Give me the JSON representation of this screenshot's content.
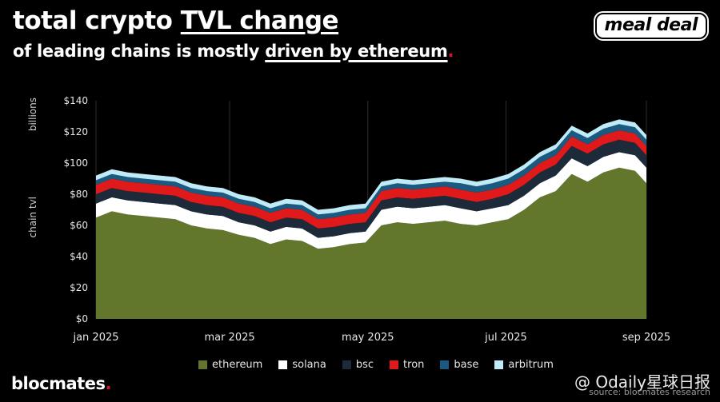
{
  "header": {
    "title_prefix": "total crypto ",
    "title_emph": "TVL change",
    "subtitle_prefix": "of leading chains is mostly ",
    "subtitle_emph": "driven by ethereum",
    "subtitle_dot": "."
  },
  "logo": {
    "text": "meal deal"
  },
  "footer": {
    "brand": "blocmates",
    "brand_dot": ".",
    "watermark": "@ Odaily星球日报",
    "source": "source: blocmates research"
  },
  "colors": {
    "ethereum": "#62772c",
    "solana": "#ffffff",
    "bsc": "#1c2a3a",
    "tron": "#e01a1a",
    "base": "#1b5a80",
    "arbitrum": "#bfeaf7",
    "accent_red": "#e0102a",
    "grid": "#2e2e2e"
  },
  "chart_data": {
    "type": "area",
    "stacked": true,
    "title": "",
    "xlabel": "",
    "ylabel": "chain tvl",
    "yunit": "billions",
    "ylim": [
      0,
      140
    ],
    "yticks": [
      0,
      20,
      40,
      60,
      80,
      100,
      120,
      140
    ],
    "ytick_labels": [
      "$0",
      "$20",
      "$40",
      "$60",
      "$80",
      "$100",
      "$120",
      "$140"
    ],
    "xtick_labels": [
      "jan 2025",
      "mar 2025",
      "may 2025",
      "jul 2025",
      "sep 2025"
    ],
    "xtick_positions": [
      "2025-01-01",
      "2025-03-01",
      "2025-05-01",
      "2025-07-01",
      "2025-09-01"
    ],
    "grid": "vertical",
    "legend_position": "bottom",
    "x": [
      "2025-01-01",
      "2025-01-08",
      "2025-01-15",
      "2025-01-22",
      "2025-01-29",
      "2025-02-05",
      "2025-02-12",
      "2025-02-19",
      "2025-02-26",
      "2025-03-05",
      "2025-03-12",
      "2025-03-19",
      "2025-03-26",
      "2025-04-02",
      "2025-04-09",
      "2025-04-16",
      "2025-04-23",
      "2025-04-30",
      "2025-05-07",
      "2025-05-14",
      "2025-05-21",
      "2025-05-28",
      "2025-06-04",
      "2025-06-11",
      "2025-06-18",
      "2025-06-25",
      "2025-07-02",
      "2025-07-09",
      "2025-07-16",
      "2025-07-23",
      "2025-07-30",
      "2025-08-06",
      "2025-08-13",
      "2025-08-20",
      "2025-08-27",
      "2025-09-01"
    ],
    "series": [
      {
        "name": "ethereum",
        "values": [
          65,
          69,
          67,
          66,
          65,
          64,
          60,
          58,
          57,
          54,
          52,
          48,
          51,
          50,
          45,
          46,
          48,
          49,
          60,
          62,
          61,
          62,
          63,
          61,
          60,
          62,
          64,
          70,
          78,
          82,
          93,
          88,
          94,
          97,
          95,
          87
        ]
      },
      {
        "name": "solana",
        "values": [
          9,
          9,
          9,
          9,
          9,
          9,
          9,
          9,
          9,
          8,
          8,
          8,
          8,
          8,
          7,
          7,
          7,
          7,
          10,
          10,
          10,
          10,
          10,
          10,
          9,
          9,
          9,
          9,
          9,
          10,
          10,
          10,
          10,
          10,
          10,
          10
        ]
      },
      {
        "name": "bsc",
        "values": [
          6,
          6,
          6,
          6,
          6,
          6,
          6,
          6,
          6,
          6,
          6,
          6,
          6,
          6,
          6,
          6,
          6,
          6,
          6,
          6,
          6,
          6,
          6,
          6,
          6,
          6,
          7,
          7,
          7,
          7,
          8,
          8,
          8,
          8,
          8,
          8
        ]
      },
      {
        "name": "tron",
        "values": [
          6,
          6,
          6,
          6,
          6,
          6,
          6,
          6,
          6,
          6,
          6,
          6,
          6,
          6,
          6,
          6,
          6,
          6,
          6,
          6,
          6,
          6,
          6,
          6,
          6,
          6,
          6,
          6,
          6,
          6,
          6,
          6,
          6,
          6,
          6,
          6
        ]
      },
      {
        "name": "base",
        "values": [
          3,
          3,
          3,
          3,
          3,
          3,
          3,
          3,
          3,
          3,
          3,
          3,
          3,
          3,
          3,
          3,
          3,
          3,
          3,
          3,
          3,
          3,
          3,
          4,
          4,
          4,
          4,
          4,
          4,
          4,
          4,
          4,
          4,
          4,
          4,
          4
        ]
      },
      {
        "name": "arbitrum",
        "values": [
          3,
          3,
          3,
          3,
          3,
          3,
          3,
          3,
          3,
          3,
          3,
          3,
          3,
          3,
          3,
          3,
          3,
          3,
          3,
          3,
          3,
          3,
          3,
          3,
          3,
          3,
          3,
          3,
          3,
          3,
          3,
          3,
          3,
          3,
          3,
          3
        ]
      }
    ]
  }
}
